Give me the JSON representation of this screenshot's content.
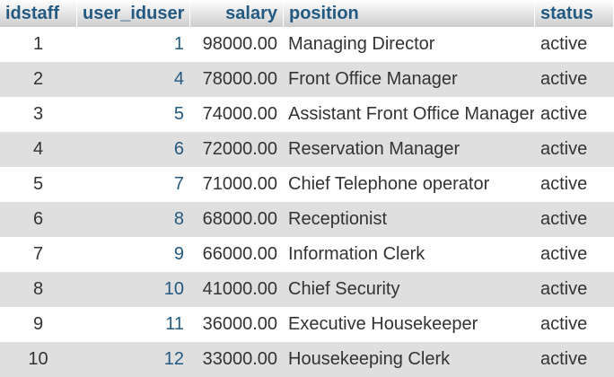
{
  "columns": [
    "idstaff",
    "user_iduser",
    "salary",
    "position",
    "status"
  ],
  "rows": [
    [
      "1",
      "1",
      "98000.00",
      "Managing Director",
      "active"
    ],
    [
      "2",
      "4",
      "78000.00",
      "Front Office Manager",
      "active"
    ],
    [
      "3",
      "5",
      "74000.00",
      "Assistant Front Office Manager",
      "active"
    ],
    [
      "4",
      "6",
      "72000.00",
      "Reservation Manager",
      "active"
    ],
    [
      "5",
      "7",
      "71000.00",
      "Chief Telephone operator",
      "active"
    ],
    [
      "6",
      "8",
      "68000.00",
      "Receptionist",
      "active"
    ],
    [
      "7",
      "9",
      "66000.00",
      "Information Clerk",
      "active"
    ],
    [
      "8",
      "10",
      "41000.00",
      "Chief Security",
      "active"
    ],
    [
      "9",
      "11",
      "36000.00",
      "Executive Housekeeper",
      "active"
    ],
    [
      "10",
      "12",
      "33000.00",
      "Housekeeping Clerk",
      "active"
    ]
  ],
  "colors": {
    "header_text": "#235a81",
    "link_text": "#235a81",
    "row_odd": "#ffffff",
    "row_even": "#dfdfdf"
  }
}
